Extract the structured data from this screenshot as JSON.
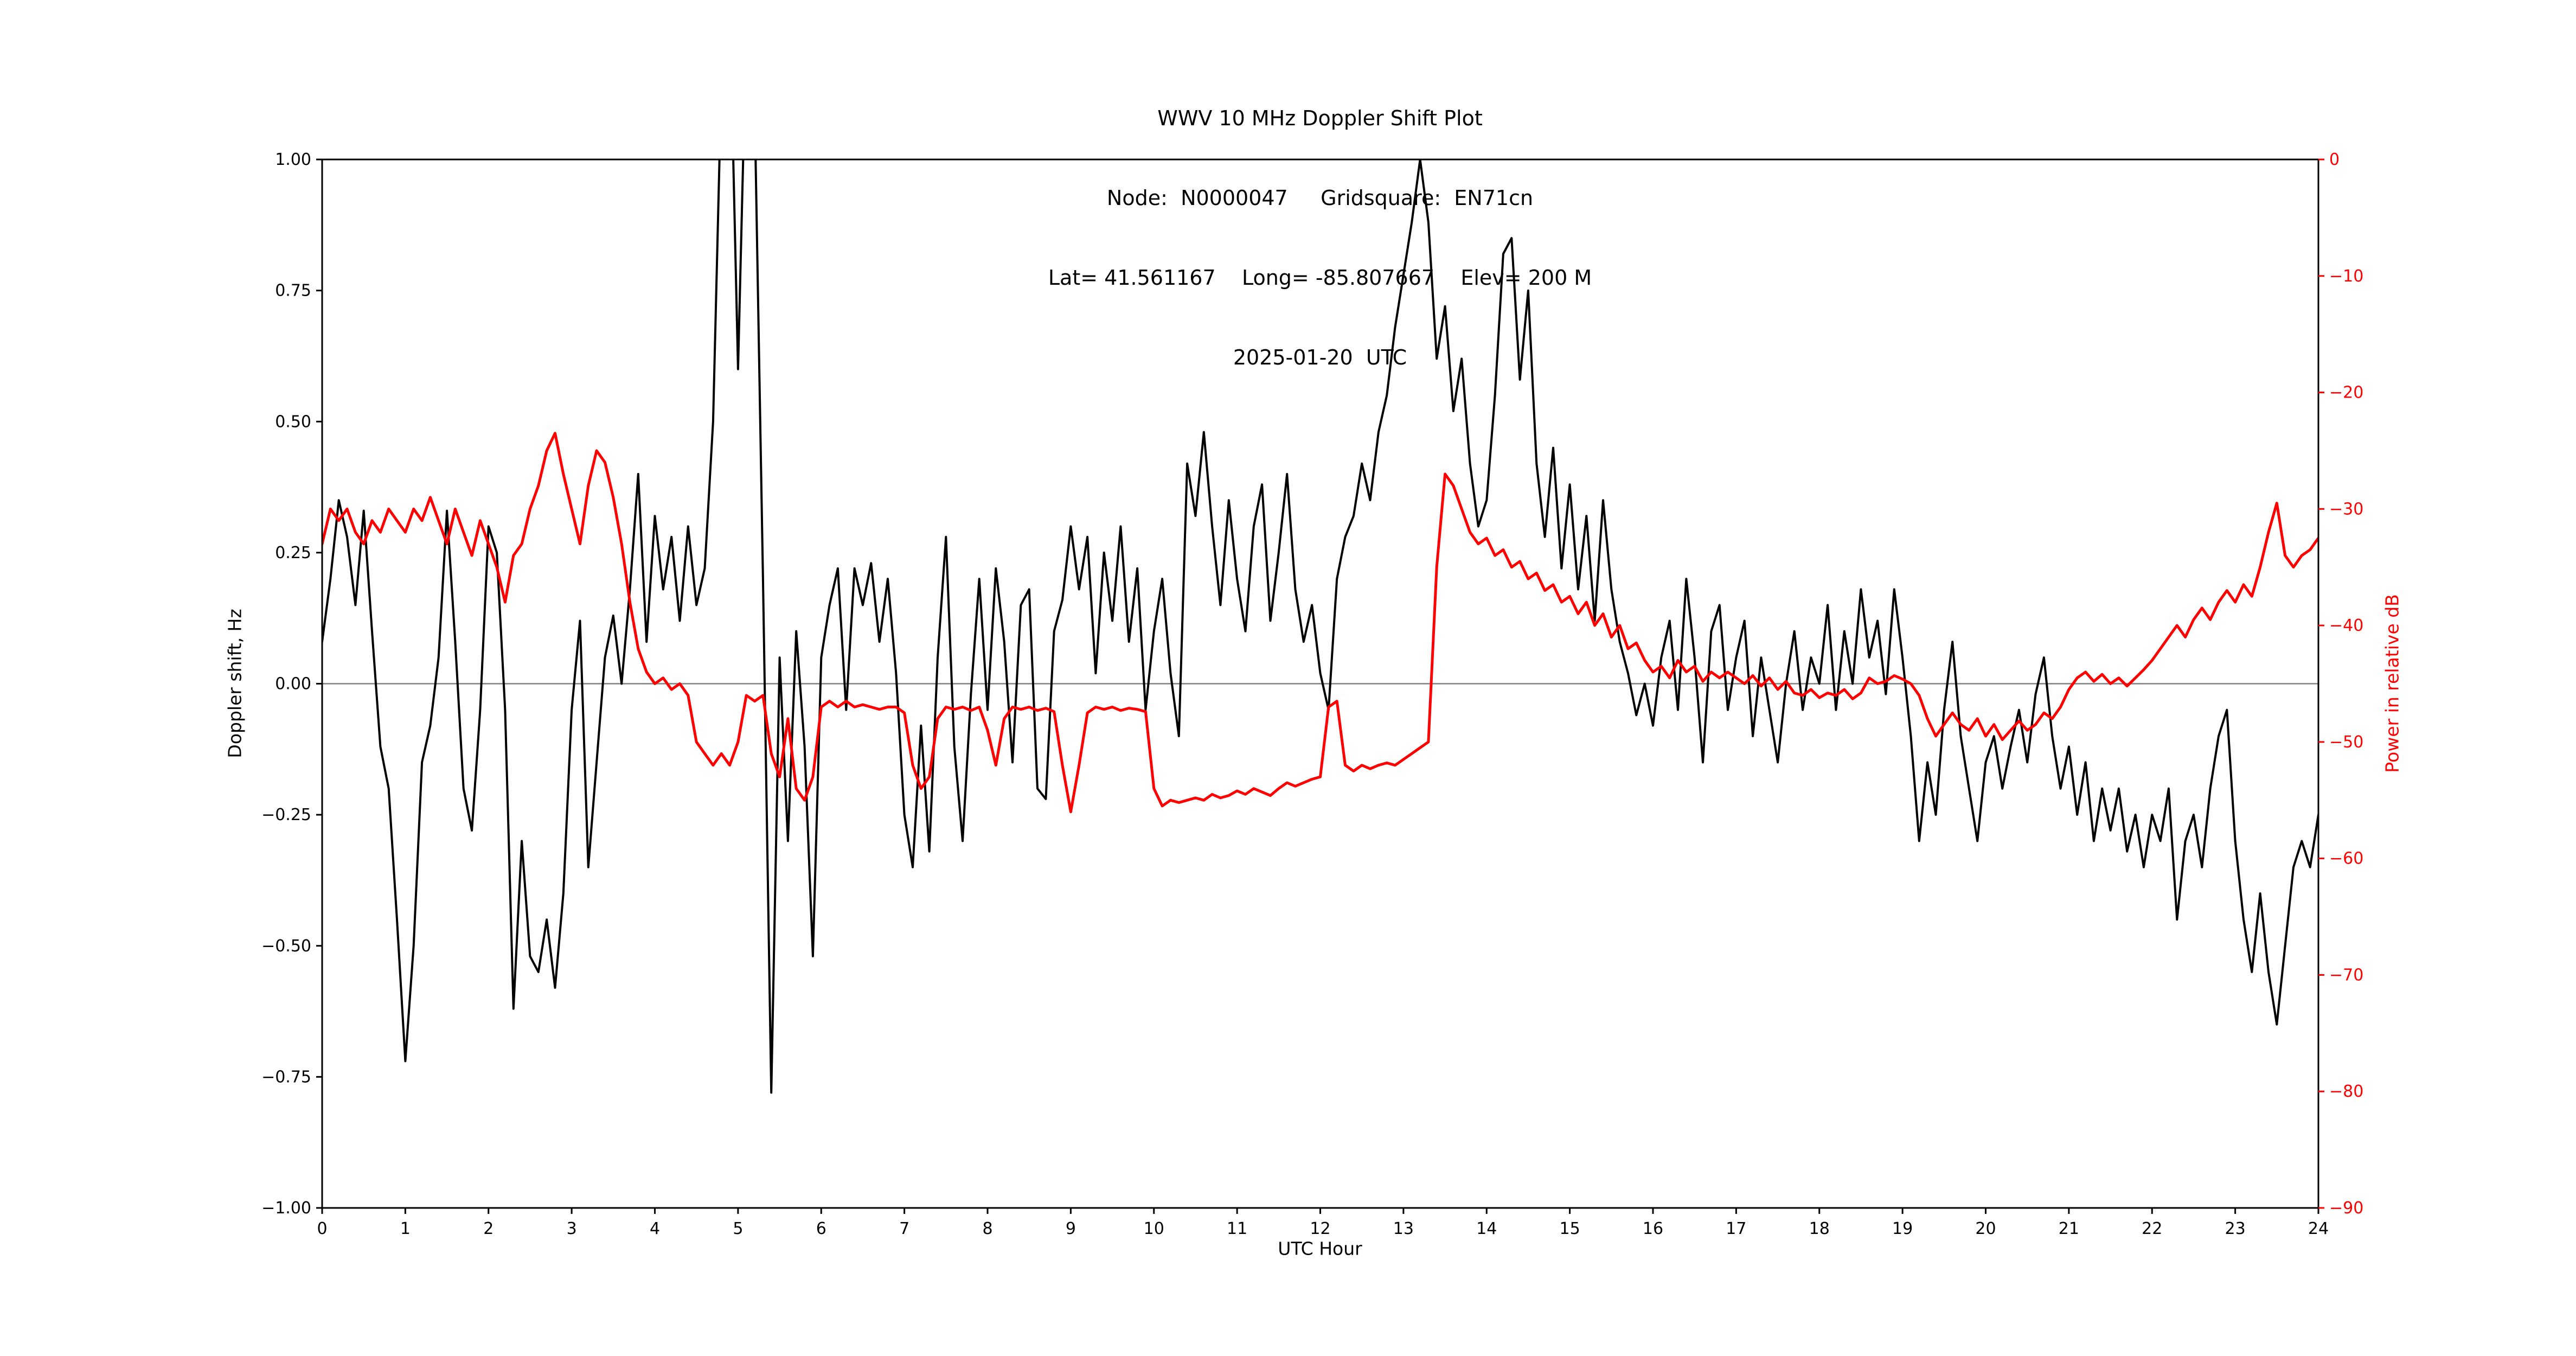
{
  "title": {
    "line1": "WWV 10 MHz Doppler Shift Plot",
    "line2": "Node:  N0000047     Gridsquare:  EN71cn",
    "line3": "Lat= 41.561167    Long= -85.807667    Elev= 200 M",
    "line4": "2025-01-20  UTC"
  },
  "axes": {
    "x_label": "UTC Hour",
    "left_label": "Doppler shift, Hz",
    "right_label": "Power in relative dB",
    "x_tick_values": [
      0,
      1,
      2,
      3,
      4,
      5,
      6,
      7,
      8,
      9,
      10,
      11,
      12,
      13,
      14,
      15,
      16,
      17,
      18,
      19,
      20,
      21,
      22,
      23,
      24
    ],
    "x_tick_labels": [
      "0",
      "1",
      "2",
      "3",
      "4",
      "5",
      "6",
      "7",
      "8",
      "9",
      "10",
      "11",
      "12",
      "13",
      "14",
      "15",
      "16",
      "17",
      "18",
      "19",
      "20",
      "21",
      "22",
      "23",
      "24"
    ],
    "left_tick_values": [
      1.0,
      0.75,
      0.5,
      0.25,
      0.0,
      -0.25,
      -0.5,
      -0.75,
      -1.0
    ],
    "left_tick_labels": [
      "1.00",
      "0.75",
      "0.50",
      "0.25",
      "0.00",
      "−0.25",
      "−0.50",
      "−0.75",
      "−1.00"
    ],
    "right_tick_values": [
      0,
      -10,
      -20,
      -30,
      -40,
      -50,
      -60,
      -70,
      -80,
      -90
    ],
    "right_tick_labels": [
      "0",
      "−10",
      "−20",
      "−30",
      "−40",
      "−50",
      "−60",
      "−70",
      "−80",
      "−90"
    ]
  },
  "colors": {
    "doppler": "#000000",
    "power": "#ff0000",
    "zero_line": "#808080",
    "spine": "#000000",
    "background": "#ffffff"
  },
  "chart_data": {
    "type": "line",
    "title": "WWV 10 MHz Doppler Shift Plot",
    "subtitle_node": "Node: N0000047  Gridsquare: EN71cn",
    "subtitle_location": "Lat= 41.561167  Long= -85.807667  Elev= 200 M",
    "subtitle_date": "2025-01-20 UTC",
    "xlabel": "UTC Hour",
    "ylabel_left": "Doppler shift, Hz",
    "ylabel_right": "Power in relative dB",
    "xlim": [
      0,
      24
    ],
    "ylim_left": [
      -1.0,
      1.0
    ],
    "ylim_right": [
      -90,
      0
    ],
    "grid": false,
    "zero_reference_line": 0,
    "x_start": 0,
    "x_step": 0.1,
    "series": [
      {
        "name": "Doppler shift (Hz)",
        "axis": "left",
        "color": "#000000",
        "values": [
          0.08,
          0.2,
          0.35,
          0.28,
          0.15,
          0.33,
          0.1,
          -0.12,
          -0.2,
          -0.45,
          -0.72,
          -0.5,
          -0.15,
          -0.08,
          0.05,
          0.33,
          0.08,
          -0.2,
          -0.28,
          -0.05,
          0.3,
          0.25,
          -0.05,
          -0.62,
          -0.3,
          -0.52,
          -0.55,
          -0.45,
          -0.58,
          -0.4,
          -0.05,
          0.12,
          -0.35,
          -0.15,
          0.05,
          0.13,
          0.0,
          0.18,
          0.4,
          0.08,
          0.32,
          0.18,
          0.28,
          0.12,
          0.3,
          0.15,
          0.22,
          0.5,
          1.15,
          1.3,
          0.6,
          1.25,
          1.1,
          0.2,
          -0.78,
          0.05,
          -0.3,
          0.1,
          -0.12,
          -0.52,
          0.05,
          0.15,
          0.22,
          -0.05,
          0.22,
          0.15,
          0.23,
          0.08,
          0.2,
          0.02,
          -0.25,
          -0.35,
          -0.08,
          -0.32,
          0.05,
          0.28,
          -0.12,
          -0.3,
          -0.02,
          0.2,
          -0.05,
          0.22,
          0.08,
          -0.15,
          0.15,
          0.18,
          -0.2,
          -0.22,
          0.1,
          0.16,
          0.3,
          0.18,
          0.28,
          0.02,
          0.25,
          0.12,
          0.3,
          0.08,
          0.22,
          -0.05,
          0.1,
          0.2,
          0.02,
          -0.1,
          0.42,
          0.32,
          0.48,
          0.3,
          0.15,
          0.35,
          0.2,
          0.1,
          0.3,
          0.38,
          0.12,
          0.25,
          0.4,
          0.18,
          0.08,
          0.15,
          0.02,
          -0.05,
          0.2,
          0.28,
          0.32,
          0.42,
          0.35,
          0.48,
          0.55,
          0.68,
          0.78,
          0.88,
          1.0,
          0.88,
          0.62,
          0.72,
          0.52,
          0.62,
          0.42,
          0.3,
          0.35,
          0.55,
          0.82,
          0.85,
          0.58,
          0.75,
          0.42,
          0.28,
          0.45,
          0.22,
          0.38,
          0.18,
          0.32,
          0.12,
          0.35,
          0.18,
          0.08,
          0.02,
          -0.06,
          0.0,
          -0.08,
          0.05,
          0.12,
          -0.05,
          0.2,
          0.05,
          -0.15,
          0.1,
          0.15,
          -0.05,
          0.05,
          0.12,
          -0.1,
          0.05,
          -0.05,
          -0.15,
          0.0,
          0.1,
          -0.05,
          0.05,
          0.0,
          0.15,
          -0.05,
          0.1,
          0.0,
          0.18,
          0.05,
          0.12,
          -0.02,
          0.18,
          0.05,
          -0.1,
          -0.3,
          -0.15,
          -0.25,
          -0.05,
          0.08,
          -0.1,
          -0.2,
          -0.3,
          -0.15,
          -0.1,
          -0.2,
          -0.12,
          -0.05,
          -0.15,
          -0.02,
          0.05,
          -0.1,
          -0.2,
          -0.12,
          -0.25,
          -0.15,
          -0.3,
          -0.2,
          -0.28,
          -0.2,
          -0.32,
          -0.25,
          -0.35,
          -0.25,
          -0.3,
          -0.2,
          -0.45,
          -0.3,
          -0.25,
          -0.35,
          -0.2,
          -0.1,
          -0.05,
          -0.3,
          -0.45,
          -0.55,
          -0.4,
          -0.55,
          -0.65,
          -0.5,
          -0.35,
          -0.3,
          -0.35,
          -0.25
        ]
      },
      {
        "name": "Power (relative dB)",
        "axis": "right",
        "color": "#ff0000",
        "values": [
          -33,
          -30,
          -31,
          -30,
          -32,
          -33,
          -31,
          -32,
          -30,
          -31,
          -32,
          -30,
          -31,
          -29,
          -31,
          -33,
          -30,
          -32,
          -34,
          -31,
          -33,
          -35,
          -38,
          -34,
          -33,
          -30,
          -28,
          -25,
          -23.5,
          -27,
          -30,
          -33,
          -28,
          -25,
          -26,
          -29,
          -33,
          -38,
          -42,
          -44,
          -45,
          -44.5,
          -45.5,
          -45,
          -46,
          -50,
          -51,
          -52,
          -51,
          -52,
          -50,
          -46,
          -46.5,
          -46,
          -51,
          -53,
          -48,
          -54,
          -55,
          -53,
          -47,
          -46.5,
          -47,
          -46.5,
          -47,
          -46.8,
          -47,
          -47.2,
          -47,
          -47,
          -47.5,
          -52,
          -54,
          -53,
          -48,
          -47,
          -47.2,
          -47,
          -47.3,
          -47,
          -49,
          -52,
          -48,
          -47,
          -47.2,
          -47,
          -47.3,
          -47.1,
          -47.4,
          -52,
          -56,
          -52,
          -47.5,
          -47,
          -47.2,
          -47,
          -47.3,
          -47.1,
          -47.2,
          -47.4,
          -54,
          -55.5,
          -55,
          -55.2,
          -55,
          -54.8,
          -55,
          -54.5,
          -54.8,
          -54.6,
          -54.2,
          -54.5,
          -54,
          -54.3,
          -54.6,
          -54,
          -53.5,
          -53.8,
          -53.5,
          -53.2,
          -53,
          -47,
          -46.5,
          -52,
          -52.5,
          -52,
          -52.3,
          -52,
          -51.8,
          -52,
          -51.5,
          -51,
          -50.5,
          -50,
          -35,
          -27,
          -28,
          -30,
          -32,
          -33,
          -32.5,
          -34,
          -33.5,
          -35,
          -34.5,
          -36,
          -35.5,
          -37,
          -36.5,
          -38,
          -37.5,
          -39,
          -38,
          -40,
          -39,
          -41,
          -40,
          -42,
          -41.5,
          -43,
          -44,
          -43.5,
          -44.5,
          -43,
          -44,
          -43.5,
          -44.8,
          -44,
          -44.5,
          -44,
          -44.5,
          -45,
          -44.3,
          -45.2,
          -44.5,
          -45.5,
          -44.8,
          -45.8,
          -46,
          -45.5,
          -46.2,
          -45.8,
          -46,
          -45.5,
          -46.3,
          -45.8,
          -44.5,
          -45,
          -44.8,
          -44.3,
          -44.6,
          -45,
          -46,
          -48,
          -49.5,
          -48.5,
          -47.5,
          -48.5,
          -49,
          -48,
          -49.5,
          -48.5,
          -49.8,
          -49,
          -48.2,
          -49,
          -48.5,
          -47.5,
          -48,
          -47,
          -45.5,
          -44.5,
          -44,
          -44.8,
          -44.2,
          -45,
          -44.5,
          -45.2,
          -44.5,
          -43.8,
          -43,
          -42,
          -41,
          -40,
          -41,
          -39.5,
          -38.5,
          -39.5,
          -38,
          -37,
          -38,
          -36.5,
          -37.5,
          -35,
          -32,
          -29.5,
          -34,
          -35,
          -34,
          -33.5,
          -32.5
        ]
      }
    ]
  }
}
